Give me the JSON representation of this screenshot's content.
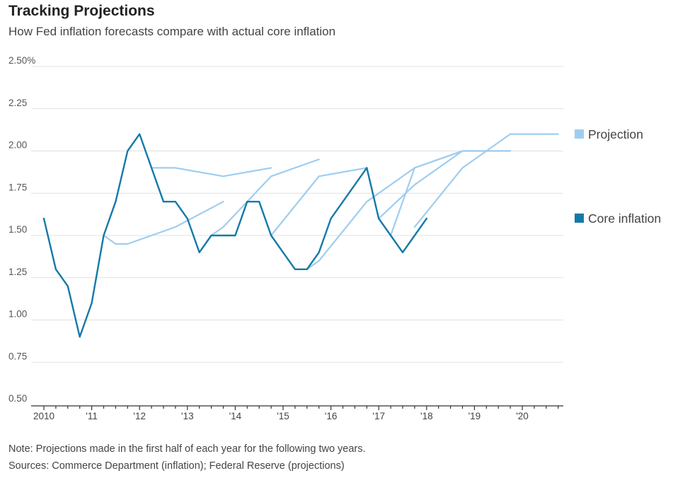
{
  "title": "Tracking Projections",
  "subtitle": "How Fed inflation forecasts compare with actual core inflation",
  "note": "Note: Projections made in the first half of each year for the following two years.",
  "sources": "Sources: Commerce Department (inflation); Federal Reserve (projections)",
  "chart_data": {
    "type": "line",
    "title": "Tracking Projections",
    "ylim": [
      0.5,
      2.5
    ],
    "xlim": [
      2010,
      2020.8
    ],
    "y_ticks": [
      0.5,
      0.75,
      1.0,
      1.25,
      1.5,
      1.75,
      2.0,
      2.25,
      2.5
    ],
    "y_tick_labels": [
      "0.50",
      "0.75",
      "1.00",
      "1.25",
      "1.50",
      "1.75",
      "2.00",
      "2.25",
      "2.50%"
    ],
    "x_major_ticks": [
      2010,
      2011,
      2012,
      2013,
      2014,
      2015,
      2016,
      2017,
      2018,
      2019,
      2020
    ],
    "x_tick_labels": [
      "2010",
      "'11",
      "'12",
      "'13",
      "'14",
      "'15",
      "'16",
      "'17",
      "'18",
      "'19",
      "'20"
    ],
    "grid": true,
    "colors": {
      "projection": "#9fcdef",
      "core": "#1479a8",
      "grid": "#e1e1e1",
      "axis": "#333333"
    },
    "legend": [
      {
        "name": "Projection",
        "color": "#9fcdef"
      },
      {
        "name": "Core inflation",
        "color": "#1479a8"
      }
    ],
    "projections": [
      {
        "name": "2011 projection",
        "x": [
          2011.25,
          2011.5,
          2011.75,
          2012.75,
          2013.75
        ],
        "y": [
          1.5,
          1.45,
          1.45,
          1.55,
          1.7
        ]
      },
      {
        "name": "2012 projection",
        "x": [
          2012.25,
          2012.75,
          2013.75,
          2014.75
        ],
        "y": [
          1.9,
          1.9,
          1.85,
          1.9
        ]
      },
      {
        "name": "2013 projection",
        "x": [
          2013.5,
          2013.75,
          2014.75,
          2015.75
        ],
        "y": [
          1.5,
          1.55,
          1.85,
          1.95
        ]
      },
      {
        "name": "2014 projection",
        "x": [
          2014.75,
          2015.75,
          2016.75
        ],
        "y": [
          1.5,
          1.85,
          1.9
        ]
      },
      {
        "name": "2015 projection",
        "x": [
          2015.5,
          2015.75,
          2016.75,
          2017.75,
          2018.75
        ],
        "y": [
          1.3,
          1.35,
          1.7,
          1.9,
          2.0
        ]
      },
      {
        "name": "2016 projection",
        "x": [
          2017.0,
          2017.75,
          2018.75,
          2019.75
        ],
        "y": [
          1.6,
          1.8,
          2.0,
          2.0
        ]
      },
      {
        "name": "2017 projection",
        "x": [
          2017.25,
          2017.75,
          2018.75,
          2019.75
        ],
        "y": [
          1.5,
          1.9,
          2.0,
          2.0
        ]
      },
      {
        "name": "2018 projection",
        "x": [
          2017.75,
          2018.75,
          2019.75,
          2020.75
        ],
        "y": [
          1.55,
          1.9,
          2.1,
          2.1
        ]
      }
    ],
    "core_inflation": {
      "name": "Core inflation",
      "x": [
        2010.0,
        2010.25,
        2010.5,
        2010.75,
        2011.0,
        2011.25,
        2011.5,
        2011.75,
        2012.0,
        2012.25,
        2012.5,
        2012.75,
        2013.0,
        2013.25,
        2013.5,
        2013.75,
        2014.0,
        2014.25,
        2014.5,
        2014.75,
        2015.0,
        2015.25,
        2015.5,
        2015.75,
        2016.0,
        2016.25,
        2016.5,
        2016.75,
        2017.0,
        2017.25,
        2017.5,
        2017.75,
        2018.0
      ],
      "y": [
        1.6,
        1.3,
        1.2,
        0.9,
        1.1,
        1.5,
        1.7,
        2.0,
        2.1,
        1.9,
        1.7,
        1.7,
        1.6,
        1.4,
        1.5,
        1.5,
        1.5,
        1.7,
        1.7,
        1.5,
        1.4,
        1.3,
        1.3,
        1.4,
        1.6,
        1.7,
        1.8,
        1.9,
        1.6,
        1.5,
        1.4,
        1.5,
        1.6
      ]
    }
  }
}
